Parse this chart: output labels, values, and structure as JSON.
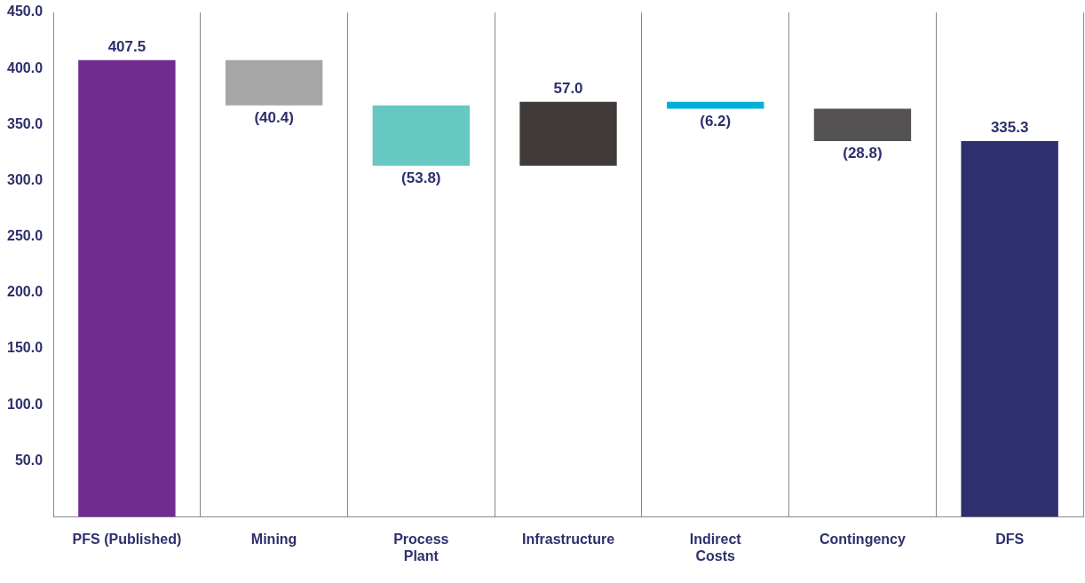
{
  "chart_data": {
    "type": "bar",
    "categories": [
      "PFS (Published)",
      "Mining",
      "Process\nPlant",
      "Infrastructure",
      "Indirect\nCosts",
      "Contingency",
      "DFS"
    ],
    "values": [
      407.5,
      -40.4,
      -53.8,
      57.0,
      -6.2,
      -28.8,
      335.3
    ],
    "base": [
      0,
      407.5,
      367.1,
      313.3,
      370.3,
      364.1,
      0
    ],
    "colors": [
      "#722b8e",
      "#a6a6a6",
      "#67c7c3",
      "#403b38",
      "#00b0d8",
      "#545253",
      "#2e2f6d"
    ],
    "value_labels": [
      "407.5",
      "(40.4)",
      "(53.8)",
      "57.0",
      "(6.2)",
      "(28.8)",
      "335.3"
    ],
    "ylim": [
      0,
      450
    ],
    "yticks": [
      {
        "value": 50,
        "label": "50.0"
      },
      {
        "value": 100,
        "label": "100.0"
      },
      {
        "value": 150,
        "label": "150.0"
      },
      {
        "value": 200,
        "label": "200.0"
      },
      {
        "value": 250,
        "label": "250.0"
      },
      {
        "value": 300,
        "label": "300.0"
      },
      {
        "value": 350,
        "label": "350.0"
      },
      {
        "value": 400,
        "label": "400.0"
      },
      {
        "value": 450,
        "label": "450.0"
      }
    ],
    "grid": "x",
    "legend": false
  }
}
